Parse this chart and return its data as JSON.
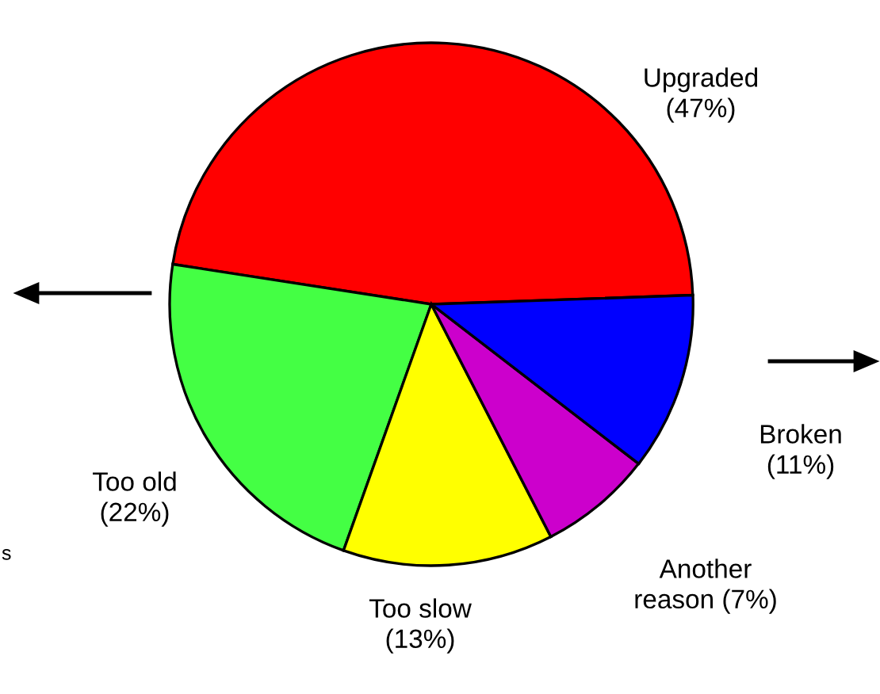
{
  "chart_data": {
    "type": "pie",
    "categories": [
      "Upgraded",
      "Too old",
      "Too slow",
      "Another reason",
      "Broken"
    ],
    "values": [
      47,
      22,
      13,
      7,
      11
    ],
    "value_labels": [
      "(47%)",
      "(22%)",
      "(13%)",
      "(7%)",
      "(11%)"
    ],
    "colors": [
      "#ff0000",
      "#44ff44",
      "#ffff00",
      "#cc00cc",
      "#0000ff"
    ],
    "annotations": [
      "s"
    ]
  }
}
